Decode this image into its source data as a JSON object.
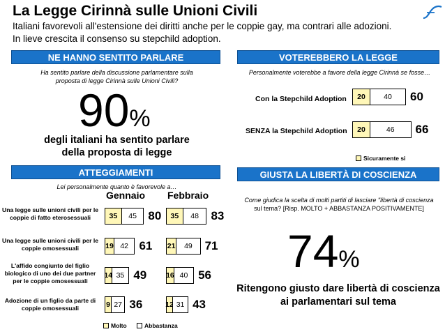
{
  "header": {
    "title": "La Legge Cirinnà sulle Unioni Civili",
    "subtitle_line1": "Italiani favorevoli all'estensione dei diritti anche per le coppie gay, ma contrari alle adozioni.",
    "subtitle_line2": "In lieve crescita il consenso su stepchild adoption."
  },
  "colors": {
    "header_bar": "#1a73c9",
    "molto": "#fff7b8",
    "abbastanza": "#ffffff"
  },
  "sentito": {
    "header": "NE HANNO SENTITO PARLARE",
    "question": "Ha sentito parlare della discussione parlamentare sulla proposta  di legge Cirinnà sulle Unioni Civili?",
    "pct_value": "90",
    "pct_sign": "%",
    "text_line1": "degli italiani ha sentito parlare",
    "text_line2": "della proposta di legge"
  },
  "atteggiamenti": {
    "header": "ATTEGGIAMENTI",
    "question": "Lei personalmente quanto è favorevole a…",
    "month1": "Gennaio",
    "month2": "Febbraio",
    "legend_molto": "Molto",
    "legend_abbastanza": "Abbastanza"
  },
  "voterebbero": {
    "header": "VOTEREBBERO LA LEGGE",
    "question": "Personalmente voterebbe a favore della legge Cirinnà se fosse…",
    "legend": "Sicuramente si"
  },
  "giusta": {
    "header": "GIUSTA LA LIBERTÀ DI COSCIENZA",
    "question_line1": "Come giudica la scelta di molti partiti di lasciare \"libertà di coscienza",
    "question_line2": "sul tema? [Risp. MOLTO + ABBASTANZA POSITIVAMENTE]",
    "pct_value": "74",
    "pct_sign": "%",
    "text_line1": "Ritengono giusto dare libertà di coscienza",
    "text_line2": "ai parlamentari sul tema"
  },
  "chart_data": [
    {
      "type": "bar",
      "stacked": true,
      "orientation": "horizontal",
      "categories": [
        "Una legge sulle unioni civili per le coppie di fatto eterosessuali",
        "Una legge sulle unioni civili per le coppie omosessuali",
        "L'affido congiunto del figlio biologico di uno dei due partner per le coppie omosessuali",
        "Adozione di un figlio da parte di coppie omosessuali"
      ],
      "groups": [
        "Gennaio",
        "Febbraio"
      ],
      "series": [
        {
          "name": "Molto",
          "gennaio": [
            35,
            19,
            14,
            9
          ],
          "febbraio": [
            35,
            21,
            16,
            12
          ]
        },
        {
          "name": "Abbastanza",
          "gennaio": [
            45,
            42,
            35,
            27
          ],
          "febbraio": [
            48,
            49,
            40,
            31
          ]
        }
      ],
      "totals": {
        "gennaio": [
          80,
          61,
          49,
          36
        ],
        "febbraio": [
          83,
          71,
          56,
          43
        ]
      }
    },
    {
      "type": "bar",
      "stacked": true,
      "orientation": "horizontal",
      "categories": [
        "Con la Stepchild Adoption",
        "SENZA la Stepchild Adoption"
      ],
      "series": [
        {
          "name": "Sicuramente si",
          "values": [
            20,
            20
          ]
        },
        {
          "name": "",
          "values": [
            40,
            46
          ]
        }
      ],
      "totals": [
        60,
        66
      ]
    }
  ]
}
